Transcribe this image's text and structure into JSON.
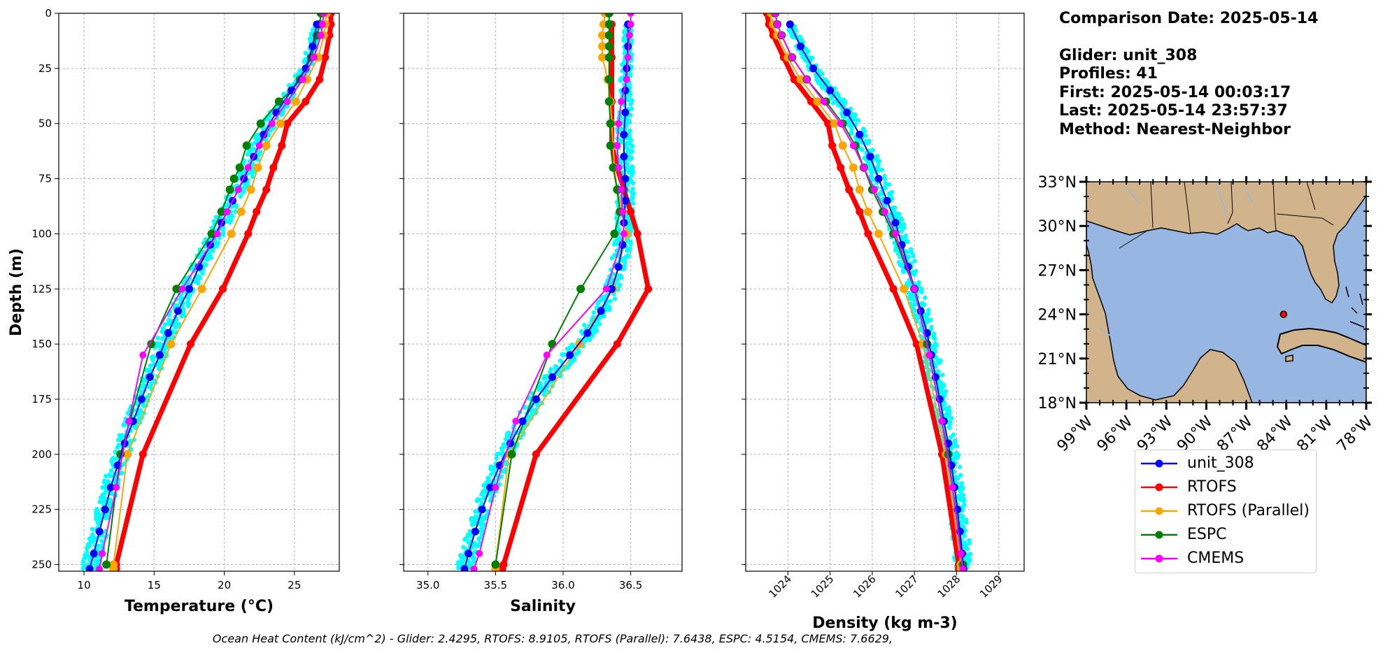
{
  "info": {
    "comparison_date": "Comparison Date: 2025-05-14",
    "glider": "Glider: unit_308",
    "profiles": "Profiles: 41",
    "first": "First: 2025-05-14 00:03:17",
    "last": "Last: 2025-05-14 23:57:37",
    "method": "Method: Nearest-Neighbor"
  },
  "footer": "Ocean Heat Content (kJ/cm^2) - Glider: 2.4295,  RTOFS: 8.9105,  RTOFS (Parallel): 7.6438,  ESPC: 4.5154,  CMEMS: 7.6629,",
  "colors": {
    "unit_308": "#0000ff",
    "RTOFS": "#ff0000",
    "RTOFS (Parallel)": "#ffa500",
    "ESPC": "#008000",
    "CMEMS": "#ff00ff",
    "glider_scatter": "#00ffff",
    "ocean": "#97b6e1",
    "land": "#d2b48c"
  },
  "legend": [
    "unit_308",
    "RTOFS",
    "RTOFS (Parallel)",
    "ESPC",
    "CMEMS"
  ],
  "chart_data": [
    {
      "type": "line",
      "xlabel": "Temperature (°C)",
      "ylabel": "Depth (m)",
      "xlim": [
        8.2,
        28.2
      ],
      "ylim": [
        253,
        0
      ],
      "xticks": [
        10,
        15,
        20,
        25
      ],
      "yticks": [
        0,
        25,
        50,
        75,
        100,
        125,
        150,
        175,
        200,
        225,
        250
      ],
      "grid": true,
      "series": [
        {
          "name": "unit_308",
          "depth": [
            5,
            15,
            25,
            35,
            45,
            55,
            65,
            75,
            85,
            95,
            105,
            115,
            125,
            135,
            145,
            155,
            165,
            175,
            185,
            195,
            205,
            215,
            225,
            235,
            245,
            252
          ],
          "values": [
            26.6,
            26.3,
            25.8,
            24.8,
            23.7,
            22.8,
            22.1,
            21.4,
            20.6,
            19.8,
            19.0,
            18.2,
            17.5,
            16.7,
            16.0,
            15.4,
            14.7,
            14.1,
            13.5,
            12.9,
            12.4,
            11.9,
            11.5,
            11.1,
            10.7,
            10.4
          ]
        },
        {
          "name": "RTOFS",
          "depth": [
            0,
            5,
            10,
            20,
            30,
            40,
            50,
            60,
            70,
            80,
            90,
            100,
            125,
            150,
            200,
            250,
            252
          ],
          "values": [
            27.6,
            27.6,
            27.5,
            27.2,
            26.8,
            25.8,
            24.5,
            24.1,
            23.5,
            23.0,
            22.3,
            21.7,
            19.9,
            17.6,
            14.2,
            12.3,
            12.3
          ]
        },
        {
          "name": "RTOFS (Parallel)",
          "depth": [
            0,
            5,
            10,
            20,
            30,
            40,
            50,
            60,
            70,
            80,
            90,
            100,
            125,
            150,
            200,
            250,
            252
          ],
          "values": [
            27.3,
            27.2,
            27.1,
            26.7,
            25.9,
            25.1,
            24.0,
            23.0,
            22.4,
            21.9,
            21.2,
            20.5,
            18.4,
            16.2,
            13.1,
            12.1,
            12.1
          ]
        },
        {
          "name": "ESPC",
          "depth": [
            0,
            5,
            10,
            20,
            30,
            35,
            40,
            50,
            60,
            70,
            75,
            80,
            90,
            100,
            125,
            150,
            200,
            250
          ],
          "values": [
            26.9,
            26.8,
            26.6,
            26.2,
            25.4,
            24.8,
            23.9,
            22.6,
            21.6,
            21.1,
            20.7,
            20.4,
            19.8,
            19.1,
            16.6,
            14.8,
            12.6,
            11.6
          ]
        },
        {
          "name": "CMEMS",
          "depth": [
            0,
            5,
            10,
            20,
            30,
            40,
            50,
            60,
            70,
            80,
            90,
            100,
            125,
            155,
            185,
            215,
            245,
            252
          ],
          "values": [
            27.1,
            27.0,
            26.9,
            26.4,
            25.6,
            24.5,
            23.4,
            22.5,
            21.7,
            21.0,
            20.2,
            19.5,
            17.0,
            14.2,
            13.2,
            12.3,
            11.3,
            11.1
          ]
        }
      ]
    },
    {
      "type": "line",
      "xlabel": "Salinity",
      "ylabel": "",
      "xlim": [
        34.82,
        36.88
      ],
      "ylim": [
        253,
        0
      ],
      "xticks": [
        35.0,
        35.5,
        36.0,
        36.5
      ],
      "grid": true,
      "series": [
        {
          "name": "unit_308",
          "depth": [
            5,
            15,
            25,
            35,
            45,
            55,
            65,
            75,
            85,
            95,
            105,
            115,
            125,
            135,
            145,
            155,
            165,
            175,
            185,
            195,
            205,
            215,
            225,
            235,
            245,
            252
          ],
          "values": [
            36.48,
            36.48,
            36.47,
            36.46,
            36.46,
            36.45,
            36.45,
            36.46,
            36.46,
            36.45,
            36.44,
            36.41,
            36.36,
            36.28,
            36.18,
            36.05,
            35.92,
            35.8,
            35.7,
            35.61,
            35.53,
            35.46,
            35.4,
            35.35,
            35.3,
            35.27
          ]
        },
        {
          "name": "RTOFS",
          "depth": [
            5,
            20,
            40,
            60,
            70,
            80,
            90,
            100,
            125,
            150,
            200,
            250,
            252
          ],
          "values": [
            36.36,
            36.36,
            36.36,
            36.36,
            36.4,
            36.45,
            36.5,
            36.55,
            36.63,
            36.4,
            35.8,
            35.56,
            35.55
          ]
        },
        {
          "name": "RTOFS (Parallel)",
          "depth": [
            0,
            5,
            10,
            15,
            20,
            30,
            40,
            50,
            60,
            70,
            80,
            90,
            100,
            125,
            150,
            200,
            250,
            252
          ],
          "values": [
            36.31,
            36.3,
            36.29,
            36.29,
            36.29,
            36.33,
            36.35,
            36.36,
            36.37,
            36.38,
            36.4,
            36.44,
            36.47,
            36.37,
            36.12,
            35.6,
            35.5,
            35.5
          ]
        },
        {
          "name": "ESPC",
          "depth": [
            0,
            5,
            10,
            15,
            20,
            30,
            40,
            50,
            60,
            70,
            80,
            90,
            100,
            125,
            150,
            200,
            250
          ],
          "values": [
            36.34,
            36.34,
            36.34,
            36.34,
            36.34,
            36.34,
            36.34,
            36.35,
            36.35,
            36.37,
            36.4,
            36.42,
            36.38,
            36.13,
            35.92,
            35.62,
            35.5
          ]
        },
        {
          "name": "CMEMS",
          "depth": [
            0,
            5,
            10,
            20,
            30,
            40,
            50,
            60,
            70,
            80,
            90,
            100,
            125,
            155,
            185,
            215,
            245,
            252
          ],
          "values": [
            36.5,
            36.5,
            36.49,
            36.48,
            36.47,
            36.43,
            36.41,
            36.4,
            36.41,
            36.43,
            36.44,
            36.45,
            36.32,
            35.88,
            35.65,
            35.5,
            35.38,
            35.34
          ]
        }
      ]
    },
    {
      "type": "line",
      "xlabel": "Density (kg m-3)",
      "ylabel": "",
      "xlim": [
        1023.0,
        1029.6
      ],
      "ylim": [
        253,
        0
      ],
      "xticks": [
        1024,
        1025,
        1026,
        1027,
        1028,
        1029
      ],
      "grid": true,
      "series": [
        {
          "name": "unit_308",
          "depth": [
            5,
            15,
            25,
            35,
            45,
            55,
            65,
            75,
            85,
            95,
            105,
            115,
            125,
            135,
            145,
            155,
            165,
            175,
            185,
            195,
            205,
            215,
            225,
            235,
            245,
            252
          ],
          "values": [
            1024.05,
            1024.3,
            1024.6,
            1025.0,
            1025.4,
            1025.7,
            1025.95,
            1026.15,
            1026.35,
            1026.55,
            1026.7,
            1026.85,
            1027.0,
            1027.15,
            1027.3,
            1027.4,
            1027.5,
            1027.6,
            1027.7,
            1027.8,
            1027.88,
            1027.95,
            1028.02,
            1028.08,
            1028.13,
            1028.16
          ]
        },
        {
          "name": "RTOFS",
          "depth": [
            0,
            5,
            10,
            20,
            30,
            40,
            50,
            60,
            70,
            80,
            90,
            100,
            125,
            150,
            200,
            250,
            252
          ],
          "values": [
            1023.5,
            1023.55,
            1023.65,
            1023.9,
            1024.15,
            1024.55,
            1024.95,
            1025.05,
            1025.25,
            1025.45,
            1025.7,
            1025.9,
            1026.5,
            1027.05,
            1027.65,
            1028.05,
            1028.05
          ]
        },
        {
          "name": "RTOFS (Parallel)",
          "depth": [
            0,
            5,
            10,
            20,
            30,
            40,
            50,
            60,
            70,
            80,
            90,
            100,
            125,
            150,
            200,
            250,
            252
          ],
          "values": [
            1023.6,
            1023.65,
            1023.75,
            1024.0,
            1024.3,
            1024.7,
            1025.1,
            1025.3,
            1025.55,
            1025.7,
            1025.9,
            1026.15,
            1026.75,
            1027.2,
            1027.75,
            1028.1,
            1028.1
          ]
        },
        {
          "name": "ESPC",
          "depth": [
            0,
            5,
            10,
            20,
            30,
            40,
            50,
            60,
            70,
            80,
            90,
            100,
            125,
            150,
            200,
            250
          ],
          "values": [
            1023.7,
            1023.75,
            1023.85,
            1024.1,
            1024.45,
            1024.9,
            1025.3,
            1025.6,
            1025.8,
            1026.0,
            1026.25,
            1026.5,
            1027.0,
            1027.3,
            1027.8,
            1028.15
          ]
        },
        {
          "name": "CMEMS",
          "depth": [
            0,
            5,
            10,
            20,
            30,
            40,
            50,
            60,
            70,
            80,
            90,
            100,
            125,
            155,
            185,
            215,
            245,
            252
          ],
          "values": [
            1023.7,
            1023.75,
            1023.85,
            1024.1,
            1024.45,
            1024.85,
            1025.25,
            1025.55,
            1025.8,
            1026.05,
            1026.3,
            1026.55,
            1027.0,
            1027.35,
            1027.65,
            1027.9,
            1028.1,
            1028.15
          ]
        }
      ]
    }
  ],
  "map": {
    "lon_range": [
      -99,
      -78
    ],
    "lat_range": [
      18,
      33
    ],
    "lon_ticks": [
      "99°W",
      "96°W",
      "93°W",
      "90°W",
      "87°W",
      "84°W",
      "81°W",
      "78°W"
    ],
    "lat_ticks": [
      "18°N",
      "21°N",
      "24°N",
      "27°N",
      "30°N",
      "33°N"
    ],
    "glider_position": {
      "lon": -84.2,
      "lat": 24.0
    }
  }
}
